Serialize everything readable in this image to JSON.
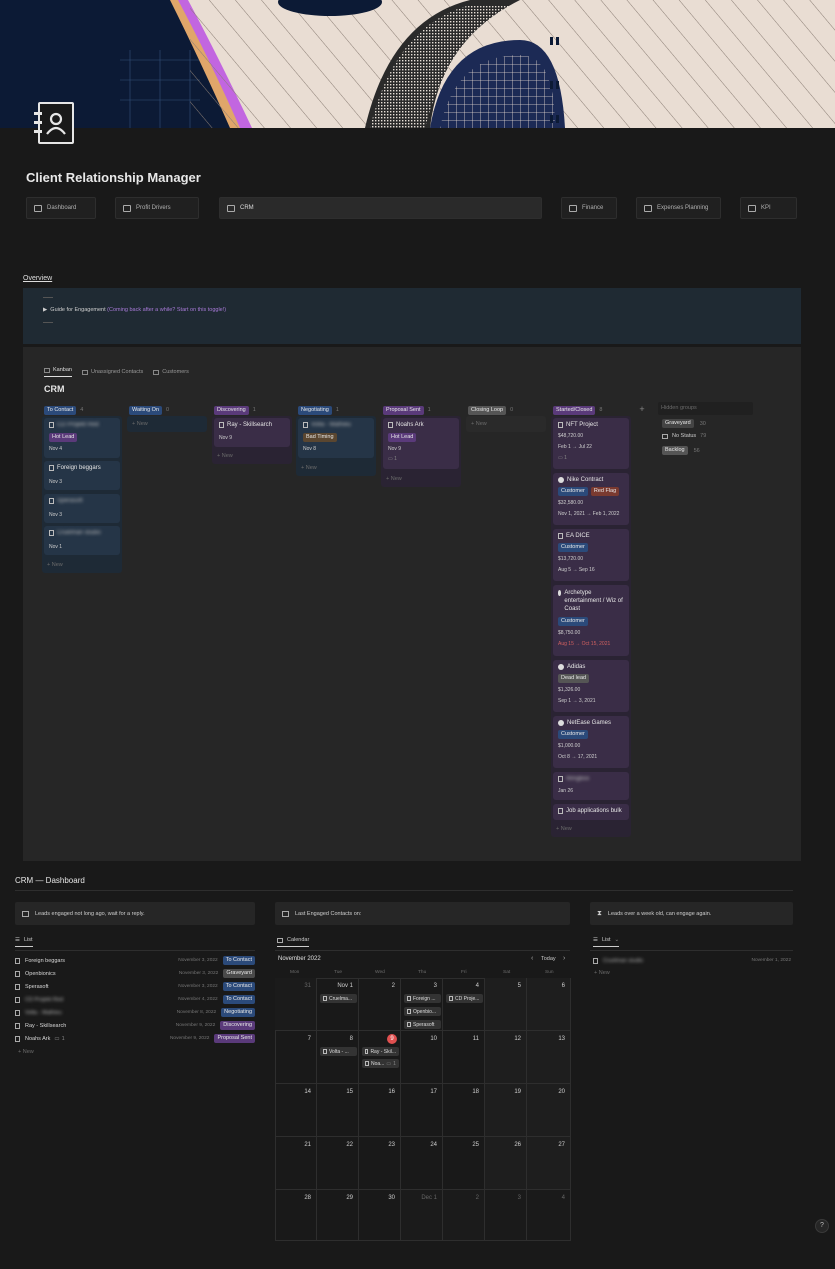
{
  "page": {
    "title": "Client Relationship Manager",
    "overview_link": "Overview",
    "toggle_label": "Guide for Engagement",
    "toggle_hint": "(Coming back after a while? Start on this toggle!)"
  },
  "nav": [
    {
      "label": "Dashboard",
      "icon": "monitor-icon"
    },
    {
      "label": "Profit Drivers",
      "icon": "book-icon"
    },
    {
      "label": "CRM",
      "icon": "contact-book-icon"
    },
    {
      "label": "Finance",
      "icon": "wallet-icon"
    },
    {
      "label": "Expenses Planning",
      "icon": "laptop-icon"
    },
    {
      "label": "KPI",
      "icon": "chart-up-icon"
    }
  ],
  "crm": {
    "view_tabs": [
      "Kanban",
      "Unassigned Contacts",
      "Customers"
    ],
    "heading": "CRM",
    "new_label": "New",
    "hidden_groups_label": "Hidden groups",
    "hidden_groups": [
      {
        "label": "Graveyard",
        "count": "30"
      },
      {
        "label": "No Status",
        "count": "79"
      },
      {
        "label": "Backlog",
        "count": "56"
      }
    ],
    "columns": [
      {
        "label": "To Contact",
        "count": "4",
        "color": "#2b4a7a"
      },
      {
        "label": "Waiting On",
        "count": "0",
        "color": "#2b4a7a"
      },
      {
        "label": "Discovering",
        "count": "1",
        "color": "#5a3a7a"
      },
      {
        "label": "Negotiating",
        "count": "1",
        "color": "#2b4a7a"
      },
      {
        "label": "Proposal Sent",
        "count": "1",
        "color": "#5a3a7a"
      },
      {
        "label": "Closing Loop",
        "count": "0",
        "color": "#555555"
      },
      {
        "label": "Started/Closed",
        "count": "8",
        "color": "#5a3a7a"
      }
    ],
    "to_contact_cards": [
      {
        "title": "CD Projekt Red",
        "tag": "Hot Lead",
        "date": "Nov 4"
      },
      {
        "title": "Foreign beggars",
        "date": "Nov 3"
      },
      {
        "title": "Sperasoft",
        "date": "Nov 3"
      },
      {
        "title": "Cruelman studio",
        "date": "Nov 1"
      }
    ],
    "discovering_card": {
      "title": "Ray - Skillsearch",
      "date": "Nov 9"
    },
    "negotiating_card": {
      "title": "Volta - Mathieu",
      "tag": "Bad Timing",
      "date": "Nov 8"
    },
    "proposal_card": {
      "title": "Noahs Ark",
      "tag": "Hot Lead",
      "date": "Nov 9",
      "comments": "1"
    },
    "closed_cards": [
      {
        "title": "NFT Project",
        "amount": "$48,720.00",
        "dates": "Feb 1 → Jul 22",
        "comments": "1"
      },
      {
        "title": "Nike Contract",
        "tags": [
          "Customer",
          "Red Flag"
        ],
        "amount": "$32,580.00",
        "dates": "Nov 1, 2021 → Feb 1, 2022"
      },
      {
        "title": "EA DICE",
        "tags": [
          "Customer"
        ],
        "amount": "$13,720.00",
        "dates": "Aug 5 → Sep 16"
      },
      {
        "title": "Archetype entertainment / Wiz of Coast",
        "tags": [
          "Customer"
        ],
        "amount": "$8,750.00",
        "dates": "Aug 15 → Oct 15, 2021"
      },
      {
        "title": "Adidas",
        "tags": [
          "Dead lead"
        ],
        "amount": "$1,326.00",
        "dates": "Sep 1 → 3, 2021"
      },
      {
        "title": "NetEase Games",
        "tags": [
          "Customer"
        ],
        "amount": "$1,000.00",
        "dates": "Oct 8 → 17, 2021"
      },
      {
        "title": "Wingbox",
        "dates": "Jan 26"
      },
      {
        "title": "Job applications bulk"
      }
    ]
  },
  "dashboard": {
    "title": "CRM — Dashboard",
    "callouts": [
      "Leads engaged not long ago, wait for a reply.",
      "Last Engaged Contacts on:",
      "Leads over a week old, can engage again."
    ],
    "list_view_label": "List",
    "calendar_view_label": "Calendar",
    "list_rows": [
      {
        "name": "Foreign beggars",
        "date": "November 3, 2022",
        "status": "To Contact",
        "color": "#2b4a7a"
      },
      {
        "name": "Openbionics",
        "date": "November 3, 2022",
        "status": "Graveyard",
        "color": "#4a4a4a"
      },
      {
        "name": "Sperasoft",
        "date": "November 3, 2022",
        "status": "To Contact",
        "color": "#2b4a7a"
      },
      {
        "name": "CD Projekt Red",
        "date": "November 4, 2022",
        "status": "To Contact",
        "color": "#2b4a7a"
      },
      {
        "name": "Volta - Mathieu",
        "date": "November 8, 2022",
        "status": "Negotiating",
        "color": "#2b4a7a"
      },
      {
        "name": "Ray - Skillsearch",
        "date": "November 9, 2022",
        "status": "Discovering",
        "color": "#5a3a7a"
      },
      {
        "name": "Noahs Ark",
        "date": "November 9, 2022",
        "status": "Proposal Sent",
        "color": "#5a3a7a",
        "comments": "1"
      }
    ],
    "right_list_row": {
      "name": "Cruelman studio",
      "date": "November 1, 2022"
    },
    "calendar": {
      "month": "November 2022",
      "today_label": "Today",
      "weekdays": [
        "Mon",
        "Tue",
        "Wed",
        "Thu",
        "Fri",
        "Sat",
        "Sun"
      ],
      "weeks": [
        [
          "31",
          "Nov 1",
          "2",
          "3",
          "4",
          "5",
          "6"
        ],
        [
          "7",
          "8",
          "9",
          "10",
          "11",
          "12",
          "13"
        ],
        [
          "14",
          "15",
          "16",
          "17",
          "18",
          "19",
          "20"
        ],
        [
          "21",
          "22",
          "23",
          "24",
          "25",
          "26",
          "27"
        ],
        [
          "28",
          "29",
          "30",
          "Dec 1",
          "2",
          "3",
          "4"
        ]
      ],
      "events": {
        "nov1": "Cruelma...",
        "nov3": [
          "Foreign ...",
          "Openbio...",
          "Sperasoft"
        ],
        "nov4": "CD Proje...",
        "nov8": "Volta - ...",
        "nov9": [
          "Ray - Skil...",
          "Noa..."
        ]
      },
      "nov9_comments": "1"
    }
  },
  "help_label": "?"
}
